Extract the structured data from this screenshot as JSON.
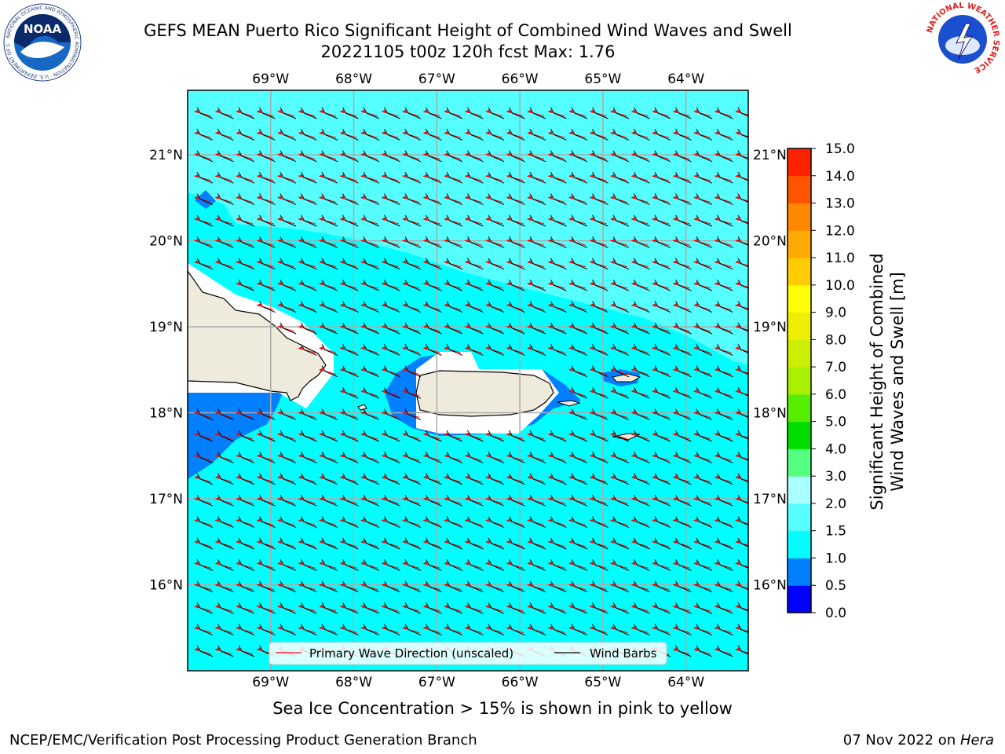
{
  "title": {
    "line1": "GEFS MEAN Puerto Rico Significant Height of Combined Wind Waves and Swell",
    "line2": "20221105 t00z 120h fcst   Max: 1.76"
  },
  "map": {
    "lon_labels": [
      "69°W",
      "68°W",
      "67°W",
      "66°W",
      "65°W",
      "64°W"
    ],
    "lat_labels": [
      "21°N",
      "20°N",
      "19°N",
      "18°N",
      "17°N",
      "16°N"
    ],
    "lon_range": [
      -70.0,
      -63.25
    ],
    "lat_range": [
      15.0,
      21.75
    ],
    "land_color": "#efebdc",
    "low_wave_color": "#0080ff",
    "base_wave_color": "#00ffff",
    "high_wave_color": "#55ffff",
    "legend": {
      "wave_dir_label": "Primary Wave Direction (unscaled)",
      "wind_barbs_label": "Wind Barbs",
      "wave_dir_color": "#ff0000",
      "wind_barb_color": "#000000"
    }
  },
  "colorbar": {
    "label_line1": "Significant Height of Combined",
    "label_line2": "Wind Waves and Swell [m]",
    "ticks": [
      "0.0",
      "0.5",
      "1.0",
      "1.5",
      "2.0",
      "3.0",
      "4.0",
      "5.0",
      "6.0",
      "7.0",
      "8.0",
      "9.0",
      "10.0",
      "11.0",
      "12.0",
      "13.0",
      "14.0",
      "15.0"
    ],
    "colors": [
      "#0000ff",
      "#0080ff",
      "#00ffff",
      "#55ffff",
      "#aaffff",
      "#55ff80",
      "#00dd00",
      "#55ee00",
      "#aaee00",
      "#ccee00",
      "#eeee00",
      "#ffff00",
      "#ffcc00",
      "#ffaa00",
      "#ff8800",
      "#ff5500",
      "#ff2200"
    ]
  },
  "caption": "Sea Ice Concentration > 15% is shown in pink to yellow",
  "footer": {
    "left": "NCEP/EMC/Verification Post Processing Product Generation Branch",
    "right_prefix": "07 Nov 2022 on ",
    "right_host": "Hera"
  },
  "logos": {
    "noaa": "NOAA",
    "noaa_ring": "NATIONAL OCEANIC AND ATMOSPHERIC ADMINISTRATION · U.S. DEPARTMENT OF COMMERCE",
    "nws_ring": "NATIONAL WEATHER SERVICE"
  }
}
